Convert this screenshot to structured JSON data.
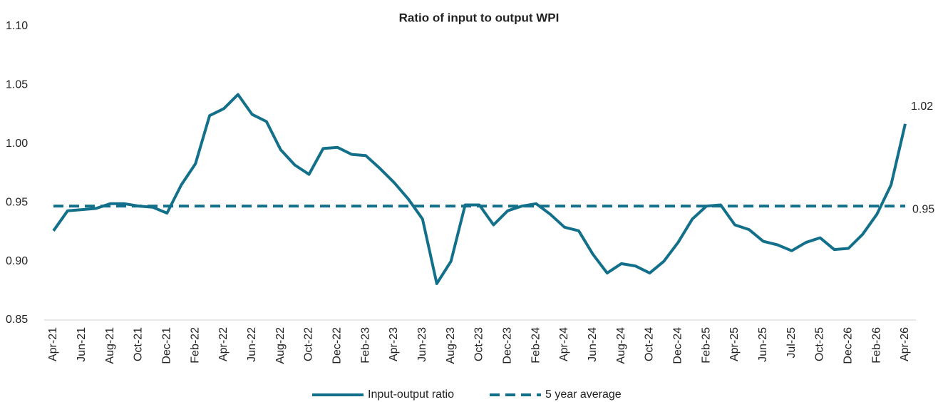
{
  "chart_data": {
    "type": "line",
    "title": "Ratio of input to output WPI",
    "categories": [
      "Apr-21",
      null,
      "Jun-21",
      null,
      "Aug-21",
      null,
      "Oct-21",
      null,
      "Dec-21",
      null,
      "Feb-22",
      null,
      "Apr-22",
      null,
      "Jun-22",
      null,
      "Aug-22",
      null,
      "Oct-22",
      null,
      "Dec-22",
      null,
      "Feb-23",
      null,
      "Apr-23",
      null,
      "Jun-23",
      null,
      "Aug-23",
      null,
      "Oct-23",
      null,
      "Dec-23",
      null,
      "Feb-24",
      null,
      "Apr-24",
      null,
      "Jun-24",
      null,
      "Aug-24",
      null,
      "Oct-24",
      null,
      "Dec-24",
      null,
      "Feb-25",
      null,
      "Apr-25",
      null,
      "Jun-25",
      null,
      "Jul-25",
      null,
      "Oct-25",
      null,
      "Dec-26",
      null,
      "Feb-26",
      null,
      "Apr-26"
    ],
    "series": [
      {
        "name": "Input-output ratio",
        "color": "#13708a",
        "dashed": false,
        "values": [
          0.926,
          0.943,
          0.944,
          0.945,
          0.949,
          0.949,
          0.947,
          0.946,
          0.941,
          0.965,
          0.983,
          1.024,
          1.03,
          1.042,
          1.025,
          1.019,
          0.995,
          0.982,
          0.974,
          0.996,
          0.997,
          0.991,
          0.99,
          0.979,
          0.967,
          0.953,
          0.936,
          0.881,
          0.9,
          0.948,
          0.948,
          0.931,
          0.943,
          0.947,
          0.949,
          0.94,
          0.929,
          0.926,
          0.906,
          0.89,
          0.898,
          0.896,
          0.89,
          0.9,
          0.916,
          0.936,
          0.947,
          0.948,
          0.931,
          0.927,
          0.917,
          0.914,
          0.909,
          0.916,
          0.92,
          0.91,
          0.911,
          0.923,
          0.94,
          0.965,
          1.017
        ],
        "value_labels": [
          null,
          null,
          null,
          null,
          null,
          null,
          null,
          null,
          null,
          null,
          null,
          null,
          null,
          null,
          null,
          null,
          null,
          null,
          null,
          null,
          null,
          null,
          null,
          null,
          null,
          null,
          null,
          null,
          null,
          null,
          null,
          null,
          null,
          null,
          null,
          null,
          null,
          null,
          null,
          null,
          null,
          null,
          null,
          null,
          null,
          null,
          null,
          null,
          null,
          null,
          null,
          null,
          null,
          null,
          null,
          null,
          null,
          null,
          null,
          null,
          "1.02"
        ]
      },
      {
        "name": "5 year average",
        "color": "#13708a",
        "dashed": true,
        "values": [
          0.947,
          0.947,
          0.947,
          0.947,
          0.947,
          0.947,
          0.947,
          0.947,
          0.947,
          0.947,
          0.947,
          0.947,
          0.947,
          0.947,
          0.947,
          0.947,
          0.947,
          0.947,
          0.947,
          0.947,
          0.947,
          0.947,
          0.947,
          0.947,
          0.947,
          0.947,
          0.947,
          0.947,
          0.947,
          0.947,
          0.947,
          0.947,
          0.947,
          0.947,
          0.947,
          0.947,
          0.947,
          0.947,
          0.947,
          0.947,
          0.947,
          0.947,
          0.947,
          0.947,
          0.947,
          0.947,
          0.947,
          0.947,
          0.947,
          0.947,
          0.947,
          0.947,
          0.947,
          0.947,
          0.947,
          0.947,
          0.947,
          0.947,
          0.947,
          0.947,
          0.947
        ],
        "value_labels": [
          null,
          null,
          null,
          null,
          null,
          null,
          null,
          null,
          null,
          null,
          null,
          null,
          null,
          null,
          null,
          null,
          null,
          null,
          null,
          null,
          null,
          null,
          null,
          null,
          null,
          null,
          null,
          null,
          null,
          null,
          null,
          null,
          null,
          null,
          null,
          null,
          null,
          null,
          null,
          null,
          null,
          null,
          null,
          null,
          null,
          null,
          null,
          null,
          null,
          null,
          null,
          null,
          null,
          null,
          null,
          null,
          null,
          null,
          null,
          null,
          "0.95"
        ]
      }
    ],
    "ylim": [
      0.85,
      1.1
    ],
    "yticks": [
      {
        "value": 0.85,
        "label": "0.85"
      },
      {
        "value": 0.9,
        "label": "0.90"
      },
      0.95,
      {
        "value": 1.0,
        "label": "1.00"
      },
      1.05,
      {
        "value": 1.1,
        "label": "1.10"
      }
    ],
    "grid": false,
    "legend": "bottom"
  }
}
